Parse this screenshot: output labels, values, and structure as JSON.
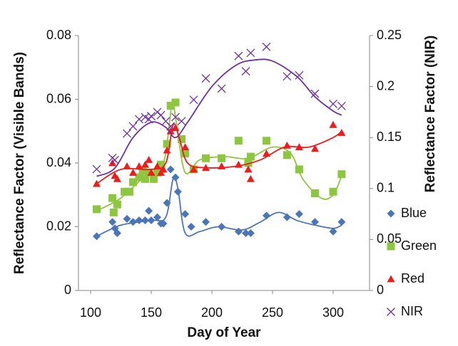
{
  "chart_data": {
    "type": "scatter",
    "x_label": "Day of Year",
    "y_label": "Reflectance Factor (Visible Bands)",
    "y2_label": "Reflectance Factor (NIR)",
    "xlim": [
      90,
      330
    ],
    "xticks": [
      100,
      150,
      200,
      250,
      300
    ],
    "ylim": [
      0,
      0.08
    ],
    "yticks": [
      0,
      0.02,
      0.04,
      0.06,
      0.08
    ],
    "y2lim": [
      0,
      0.25
    ],
    "y2ticks": [
      0,
      0.05,
      0.1,
      0.15,
      0.2,
      0.25
    ],
    "grid": false,
    "legend": "right",
    "series": [
      {
        "name": "Blue",
        "color": "#4a76b8",
        "marker": "diamond",
        "x": [
          105,
          118,
          120,
          122,
          130,
          135,
          140,
          145,
          148,
          150,
          155,
          158,
          160,
          163,
          166,
          170,
          172,
          178,
          183,
          195,
          208,
          222,
          228,
          232,
          245,
          262,
          272,
          285,
          300,
          307
        ],
        "values": [
          0.017,
          0.0215,
          0.0195,
          0.018,
          0.0225,
          0.0215,
          0.022,
          0.022,
          0.025,
          0.022,
          0.023,
          0.021,
          0.021,
          0.0275,
          0.038,
          0.0355,
          0.031,
          0.024,
          0.02,
          0.0215,
          0.02,
          0.0185,
          0.018,
          0.018,
          0.0235,
          0.023,
          0.024,
          0.0215,
          0.0185,
          0.0215
        ],
        "trend": {
          "x": [
            105,
            125,
            150,
            162,
            168,
            172,
            178,
            190,
            205,
            225,
            240,
            255,
            270,
            285,
            300,
            307
          ],
          "values": [
            0.017,
            0.0205,
            0.022,
            0.023,
            0.035,
            0.032,
            0.018,
            0.0185,
            0.02,
            0.019,
            0.0215,
            0.0245,
            0.022,
            0.0205,
            0.0195,
            0.0205
          ]
        }
      },
      {
        "name": "Green",
        "color": "#8dc63f",
        "marker": "square",
        "x": [
          105,
          118,
          119,
          122,
          128,
          132,
          135,
          140,
          143,
          145,
          148,
          152,
          155,
          158,
          163,
          166,
          170,
          175,
          178,
          185,
          195,
          208,
          222,
          230,
          232,
          245,
          262,
          272,
          285,
          300,
          307
        ],
        "values": [
          0.0255,
          0.029,
          0.0245,
          0.027,
          0.031,
          0.031,
          0.034,
          0.0355,
          0.0375,
          0.035,
          0.037,
          0.035,
          0.037,
          0.0395,
          0.046,
          0.058,
          0.059,
          0.0475,
          0.043,
          0.038,
          0.0415,
          0.0415,
          0.047,
          0.04,
          0.042,
          0.047,
          0.0425,
          0.038,
          0.0305,
          0.031,
          0.0365
        ],
        "trend": {
          "x": [
            105,
            125,
            145,
            160,
            167,
            171,
            178,
            190,
            210,
            230,
            250,
            265,
            275,
            290,
            300,
            307
          ],
          "values": [
            0.025,
            0.029,
            0.036,
            0.04,
            0.058,
            0.052,
            0.037,
            0.041,
            0.042,
            0.0415,
            0.045,
            0.043,
            0.035,
            0.029,
            0.03,
            0.036
          ]
        }
      },
      {
        "name": "Red",
        "color": "#ee1c1c",
        "marker": "triangle",
        "x": [
          105,
          118,
          120,
          122,
          130,
          135,
          140,
          145,
          148,
          150,
          155,
          158,
          160,
          163,
          166,
          170,
          178,
          185,
          195,
          208,
          222,
          230,
          232,
          245,
          262,
          272,
          285,
          300,
          307
        ],
        "values": [
          0.0335,
          0.04,
          0.036,
          0.035,
          0.039,
          0.037,
          0.039,
          0.0395,
          0.041,
          0.037,
          0.039,
          0.037,
          0.038,
          0.044,
          0.05,
          0.051,
          0.045,
          0.038,
          0.0385,
          0.039,
          0.0395,
          0.038,
          0.035,
          0.043,
          0.0455,
          0.045,
          0.0445,
          0.052,
          0.0495
        ],
        "trend": {
          "x": [
            105,
            125,
            150,
            162,
            168,
            173,
            180,
            195,
            220,
            240,
            260,
            280,
            300,
            307
          ],
          "values": [
            0.0335,
            0.038,
            0.038,
            0.04,
            0.052,
            0.048,
            0.04,
            0.0385,
            0.039,
            0.041,
            0.045,
            0.045,
            0.048,
            0.05
          ]
        }
      },
      {
        "name": "NIR",
        "color": "#7030a0",
        "marker": "x",
        "axis": "y2",
        "x": [
          105,
          118,
          120,
          130,
          135,
          140,
          145,
          148,
          150,
          155,
          158,
          162,
          166,
          170,
          175,
          185,
          195,
          208,
          222,
          228,
          232,
          245,
          262,
          272,
          285,
          300,
          307
        ],
        "values": [
          0.119,
          0.13,
          0.128,
          0.154,
          0.161,
          0.168,
          0.17,
          0.168,
          0.171,
          0.175,
          0.172,
          0.166,
          0.161,
          0.17,
          0.166,
          0.187,
          0.208,
          0.198,
          0.23,
          0.215,
          0.233,
          0.239,
          0.21,
          0.211,
          0.193,
          0.183,
          0.181
        ],
        "trend": {
          "x": [
            105,
            120,
            135,
            150,
            162,
            170,
            180,
            200,
            220,
            235,
            250,
            270,
            285,
            300,
            307
          ],
          "values": [
            0.112,
            0.12,
            0.15,
            0.165,
            0.16,
            0.15,
            0.165,
            0.2,
            0.221,
            0.226,
            0.225,
            0.21,
            0.19,
            0.176,
            0.172
          ]
        }
      }
    ]
  }
}
